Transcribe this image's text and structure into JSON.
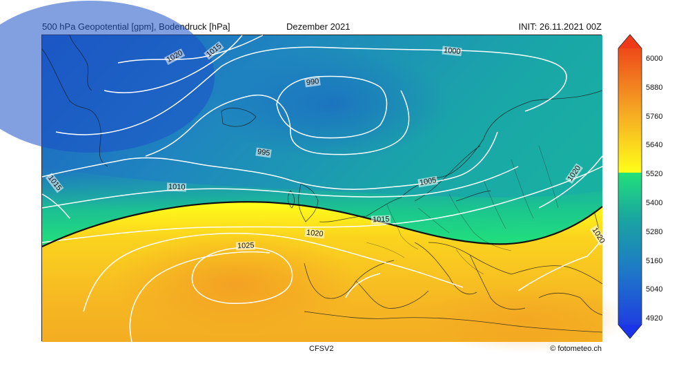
{
  "header": {
    "left_title": "500 hPa Geopotential [gpm], Bodendruck [hPa]",
    "center_title": "Dezember 2021",
    "right_title": "INIT: 26.11.2021 00Z"
  },
  "footer": {
    "model": "CFSV2",
    "credit": "© fotometeo.ch"
  },
  "colorbar": {
    "ticks": [
      "6000",
      "5880",
      "5760",
      "5640",
      "5520",
      "5400",
      "5280",
      "5160",
      "5040",
      "4920"
    ],
    "colors": {
      "low": "#1f3fe0",
      "mid_low": "#1e78c8",
      "mid": "#1aa6a0",
      "green": "#22e07a",
      "yellow": "#ffff1a",
      "orange": "#f5a623",
      "high": "#ee4a1a"
    }
  },
  "isobar_labels": [
    "1020",
    "1015",
    "1000",
    "990",
    "995",
    "1015",
    "1010",
    "1005",
    "1020",
    "1015",
    "1020",
    "1025",
    "1020"
  ]
}
